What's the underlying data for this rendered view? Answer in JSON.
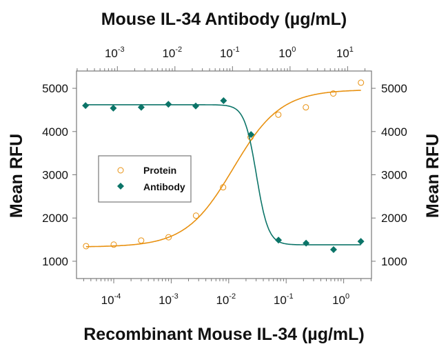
{
  "chart_data": {
    "type": "scatter",
    "title": "Mouse IL-34 Antibody (µg/mL)",
    "xlabel": "Recombinant Mouse IL-34 (µg/mL)",
    "x2label": "Mouse IL-34 Antibody (µg/mL)",
    "ylabel": "Mean RFU",
    "y2label": "Mean RFU",
    "xscale": "log",
    "xlim": [
      2.25e-05,
      3.05
    ],
    "x2lim": [
      0.000195,
      26
    ],
    "ylim": [
      600,
      5400
    ],
    "yticks": [
      1000,
      2000,
      3000,
      4000,
      5000
    ],
    "xticks": [
      {
        "base": "10",
        "exp": "-4",
        "value": 0.0001
      },
      {
        "base": "10",
        "exp": "-3",
        "value": 0.001
      },
      {
        "base": "10",
        "exp": "-2",
        "value": 0.01
      },
      {
        "base": "10",
        "exp": "-1",
        "value": 0.1
      },
      {
        "base": "10",
        "exp": "0",
        "value": 1
      }
    ],
    "x2ticks": [
      {
        "base": "10",
        "exp": "-3",
        "value": 0.001
      },
      {
        "base": "10",
        "exp": "-2",
        "value": 0.01
      },
      {
        "base": "10",
        "exp": "-1",
        "value": 0.1
      },
      {
        "base": "10",
        "exp": "0",
        "value": 1
      },
      {
        "base": "10",
        "exp": "1",
        "value": 10
      }
    ],
    "legend_position": "center-left",
    "series": [
      {
        "name": "Protein",
        "axis": "bottom",
        "marker": "open-circle",
        "color": "#e8900f",
        "x": [
          3.3e-05,
          0.0001,
          0.0003,
          0.0009,
          0.0027,
          0.008,
          0.024,
          0.073,
          0.22,
          0.66,
          2.0
        ],
        "y": [
          1350,
          1385,
          1480,
          1555,
          2055,
          2710,
          3870,
          4390,
          4560,
          4880,
          5130
        ],
        "fit": {
          "bottom": 1330,
          "top": 4970,
          "ec50": 0.012,
          "hill": 1.05
        }
      },
      {
        "name": "Antibody",
        "axis": "top",
        "marker": "filled-diamond",
        "color": "#0b7468",
        "x": [
          0.00028,
          0.00085,
          0.0026,
          0.0077,
          0.023,
          0.07,
          0.21,
          0.63,
          1.9,
          5.7,
          17
        ],
        "y": [
          4600,
          4540,
          4560,
          4630,
          4590,
          4715,
          3930,
          1490,
          1420,
          1270,
          1460
        ],
        "fit": {
          "bottom": 1380,
          "top": 4620,
          "ec50": 0.26,
          "hill": -4.2
        }
      }
    ]
  }
}
